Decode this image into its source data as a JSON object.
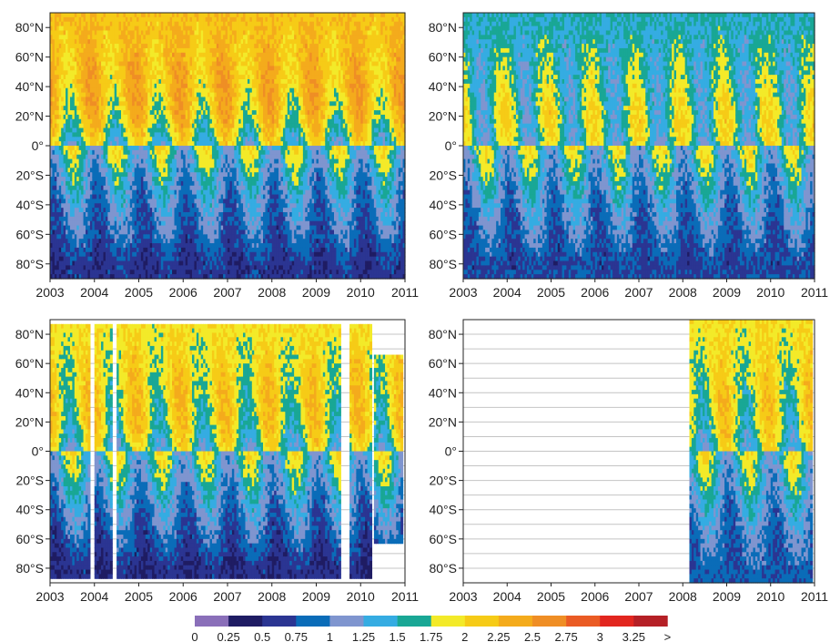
{
  "chart_data": {
    "type": "heatmap",
    "title": "",
    "xlabel": "",
    "ylabel": "",
    "x_ticks": [
      "2003",
      "2004",
      "2005",
      "2006",
      "2007",
      "2008",
      "2009",
      "2010",
      "2011"
    ],
    "y_ticks": [
      "80°N",
      "60°N",
      "40°N",
      "20°N",
      "0°",
      "20°S",
      "40°S",
      "60°S",
      "80°S"
    ],
    "xlim": [
      2003,
      2011
    ],
    "ylim": [
      -90,
      90
    ],
    "colorbar": {
      "labels": [
        "0",
        "0.25",
        "0.5",
        "0.75",
        "1",
        "1.25",
        "1.5",
        "1.75",
        "2",
        "2.25",
        "2.5",
        "2.75",
        "3",
        "3.25",
        ">"
      ],
      "colors": [
        "#8a6fb9",
        "#1f1c63",
        "#2b3592",
        "#0a6cb8",
        "#7f95cf",
        "#35ace2",
        "#19a795",
        "#f3ea29",
        "#f6cb17",
        "#f4ab1c",
        "#ef8e25",
        "#ea5b24",
        "#e2261f",
        "#b52026"
      ]
    },
    "panels": [
      {
        "position": "top-left",
        "coverage": [
          [
            2003,
            2011
          ]
        ],
        "zonal_levels": [
          {
            "lat": 80,
            "value": 2.2
          },
          {
            "lat": 60,
            "value": 2.2
          },
          {
            "lat": 40,
            "value": 2.2
          },
          {
            "lat": 20,
            "value": 2.05
          },
          {
            "lat": 0,
            "value": 1.65
          },
          {
            "lat": -20,
            "value": 1.3
          },
          {
            "lat": -40,
            "value": 1.05
          },
          {
            "lat": -60,
            "value": 0.85
          },
          {
            "lat": -80,
            "value": 0.6
          }
        ]
      },
      {
        "position": "top-right",
        "coverage": [
          [
            2003,
            2011
          ]
        ],
        "zonal_levels": [
          {
            "lat": 80,
            "value": 1.5
          },
          {
            "lat": 60,
            "value": 1.55
          },
          {
            "lat": 40,
            "value": 1.6
          },
          {
            "lat": 20,
            "value": 1.7
          },
          {
            "lat": 0,
            "value": 1.6
          },
          {
            "lat": -20,
            "value": 1.35
          },
          {
            "lat": -40,
            "value": 1.1
          },
          {
            "lat": -60,
            "value": 0.9
          },
          {
            "lat": -80,
            "value": 0.7
          }
        ]
      },
      {
        "position": "bottom-left",
        "coverage": [
          [
            2003.0,
            2003.9
          ],
          [
            2004.02,
            2004.4
          ],
          [
            2004.5,
            2009.55
          ],
          [
            2009.75,
            2010.25
          ],
          [
            2010.3,
            2010.95
          ]
        ],
        "zonal_levels": [
          {
            "lat": 80,
            "value": 1.95
          },
          {
            "lat": 60,
            "value": 1.95
          },
          {
            "lat": 40,
            "value": 1.95
          },
          {
            "lat": 20,
            "value": 1.9
          },
          {
            "lat": 0,
            "value": 1.6
          },
          {
            "lat": -20,
            "value": 1.35
          },
          {
            "lat": -40,
            "value": 1.05
          },
          {
            "lat": -60,
            "value": 0.8
          },
          {
            "lat": -80,
            "value": 0.55
          }
        ]
      },
      {
        "position": "bottom-right",
        "coverage": [
          [
            2008.15,
            2010.95
          ]
        ],
        "zonal_levels": [
          {
            "lat": 80,
            "value": 1.95
          },
          {
            "lat": 60,
            "value": 1.9
          },
          {
            "lat": 40,
            "value": 1.9
          },
          {
            "lat": 20,
            "value": 1.85
          },
          {
            "lat": 0,
            "value": 1.6
          },
          {
            "lat": -20,
            "value": 1.4
          },
          {
            "lat": -40,
            "value": 1.15
          },
          {
            "lat": -60,
            "value": 0.95
          },
          {
            "lat": -80,
            "value": 0.8
          }
        ]
      }
    ]
  }
}
